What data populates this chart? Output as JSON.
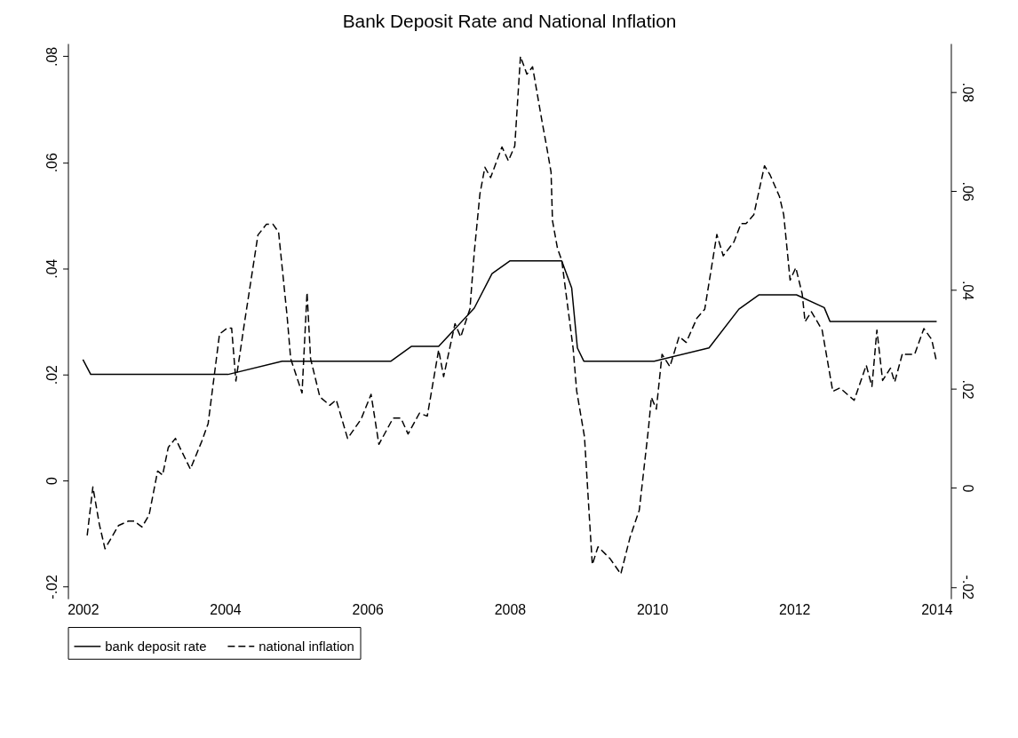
{
  "chart_data": {
    "type": "line",
    "title": "Bank Deposit Rate and National Inflation",
    "xlim": [
      2001.79,
      2014.2
    ],
    "xticks": [
      2002,
      2004,
      2006,
      2008,
      2010,
      2012,
      2014
    ],
    "ylim": [
      -0.0223,
      0.0824
    ],
    "yticks": [
      {
        "value": -0.02,
        "label": "-.02"
      },
      0,
      {
        "value": 0.02,
        "label": ".02"
      },
      {
        "value": 0.04,
        "label": ".04"
      },
      {
        "value": 0.06,
        "label": ".06"
      },
      {
        "value": 0.08,
        "label": ".08"
      }
    ],
    "y2lim": [
      -0.0224,
      0.0898
    ],
    "y2ticks": [
      {
        "value": -0.02,
        "label": "-.02"
      },
      0,
      {
        "value": 0.02,
        "label": ".02"
      },
      {
        "value": 0.04,
        "label": ".04"
      },
      {
        "value": 0.06,
        "label": ".06"
      },
      {
        "value": 0.08,
        "label": ".08"
      }
    ],
    "legend": "bottom",
    "grid": false,
    "marker": "none",
    "series": [
      {
        "name": "bank deposit rate",
        "color": "#000000",
        "line_style": "solid",
        "x": [
          2002.0,
          2002.11,
          2004.04,
          2004.8,
          2006.33,
          2006.62,
          2007.0,
          2007.5,
          2007.75,
          2008.0,
          2008.73,
          2008.87,
          2008.95,
          2009.04,
          2010.03,
          2010.8,
          2011.22,
          2011.5,
          2012.03,
          2012.42,
          2012.5,
          2014.0
        ],
        "values": [
          0.0228,
          0.02,
          0.02,
          0.0225,
          0.0225,
          0.0253,
          0.0253,
          0.0325,
          0.039,
          0.0414,
          0.0414,
          0.0363,
          0.025,
          0.0225,
          0.0225,
          0.025,
          0.0323,
          0.035,
          0.035,
          0.0326,
          0.03,
          0.03
        ]
      },
      {
        "name": "national inflation",
        "color": "#000000",
        "line_style": "dashed",
        "axis": "y2",
        "x": [
          2002.06,
          2002.14,
          2002.23,
          2002.31,
          2002.5,
          2002.64,
          2002.72,
          2002.83,
          2002.93,
          2003.05,
          2003.12,
          2003.2,
          2003.3,
          2003.51,
          2003.67,
          2003.76,
          2003.86,
          2003.92,
          2004.03,
          2004.09,
          2004.15,
          2004.27,
          2004.46,
          2004.58,
          2004.67,
          2004.75,
          2004.87,
          2004.92,
          2005.08,
          2005.15,
          2005.2,
          2005.33,
          2005.47,
          2005.56,
          2005.72,
          2005.91,
          2006.05,
          2006.16,
          2006.36,
          2006.47,
          2006.57,
          2006.73,
          2006.84,
          2007.0,
          2007.07,
          2007.23,
          2007.31,
          2007.44,
          2007.5,
          2007.58,
          2007.65,
          2007.73,
          2007.89,
          2007.98,
          2008.07,
          2008.15,
          2008.24,
          2008.32,
          2008.45,
          2008.52,
          2008.58,
          2008.6,
          2008.67,
          2008.73,
          2008.89,
          2008.94,
          2009.05,
          2009.12,
          2009.16,
          2009.24,
          2009.41,
          2009.56,
          2009.69,
          2009.82,
          2009.95,
          2009.99,
          2010.06,
          2010.14,
          2010.25,
          2010.38,
          2010.48,
          2010.63,
          2010.74,
          2010.91,
          2011.0,
          2011.15,
          2011.25,
          2011.32,
          2011.43,
          2011.58,
          2011.66,
          2011.79,
          2011.85,
          2011.94,
          2012.02,
          2012.11,
          2012.15,
          2012.24,
          2012.39,
          2012.54,
          2012.64,
          2012.84,
          2013.01,
          2013.09,
          2013.16,
          2013.24,
          2013.35,
          2013.41,
          2013.52,
          2013.56,
          2013.69,
          2013.82,
          2013.93,
          2014.0
        ],
        "values": [
          -0.0096,
          0.0002,
          -0.0073,
          -0.0123,
          -0.0076,
          -0.0067,
          -0.0067,
          -0.0079,
          -0.0055,
          0.0034,
          0.0026,
          0.0082,
          0.01,
          0.0038,
          0.0094,
          0.013,
          0.0243,
          0.0311,
          0.0323,
          0.0323,
          0.0216,
          0.0333,
          0.0511,
          0.0533,
          0.0533,
          0.0517,
          0.0347,
          0.0261,
          0.0192,
          0.0395,
          0.0261,
          0.0184,
          0.0167,
          0.0178,
          0.01,
          0.0139,
          0.0189,
          0.0088,
          0.0141,
          0.0141,
          0.0109,
          0.0151,
          0.0145,
          0.0279,
          0.0225,
          0.0332,
          0.0305,
          0.0362,
          0.0475,
          0.0594,
          0.0648,
          0.0627,
          0.0689,
          0.0661,
          0.0691,
          0.0872,
          0.0836,
          0.0851,
          0.0743,
          0.0688,
          0.0638,
          0.054,
          0.0484,
          0.046,
          0.0282,
          0.0196,
          0.0103,
          -0.0063,
          -0.0155,
          -0.0119,
          -0.0143,
          -0.0174,
          -0.01,
          -0.0045,
          0.0121,
          0.0183,
          0.0159,
          0.027,
          0.0245,
          0.0306,
          0.0294,
          0.0343,
          0.0361,
          0.0512,
          0.0469,
          0.0497,
          0.0534,
          0.0534,
          0.0552,
          0.0651,
          0.0632,
          0.0589,
          0.0552,
          0.042,
          0.0445,
          0.0392,
          0.0336,
          0.0356,
          0.0319,
          0.0195,
          0.0202,
          0.0177,
          0.0248,
          0.0205,
          0.0319,
          0.0217,
          0.0242,
          0.0214,
          0.0272,
          0.027,
          0.027,
          0.0322,
          0.03,
          0.0254
        ]
      }
    ]
  }
}
